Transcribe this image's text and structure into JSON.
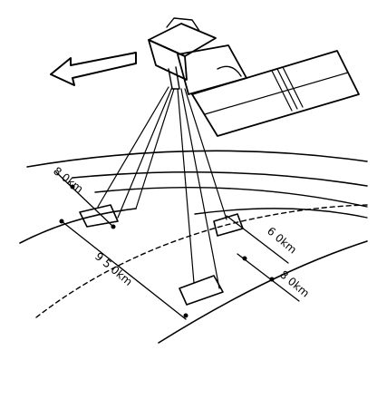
{
  "diagram": {
    "labels": {
      "swath_near": "8 0km",
      "swath_total": "9 5 0km",
      "swath_far_a": "6 0km",
      "swath_far_b": "8 0km"
    }
  }
}
